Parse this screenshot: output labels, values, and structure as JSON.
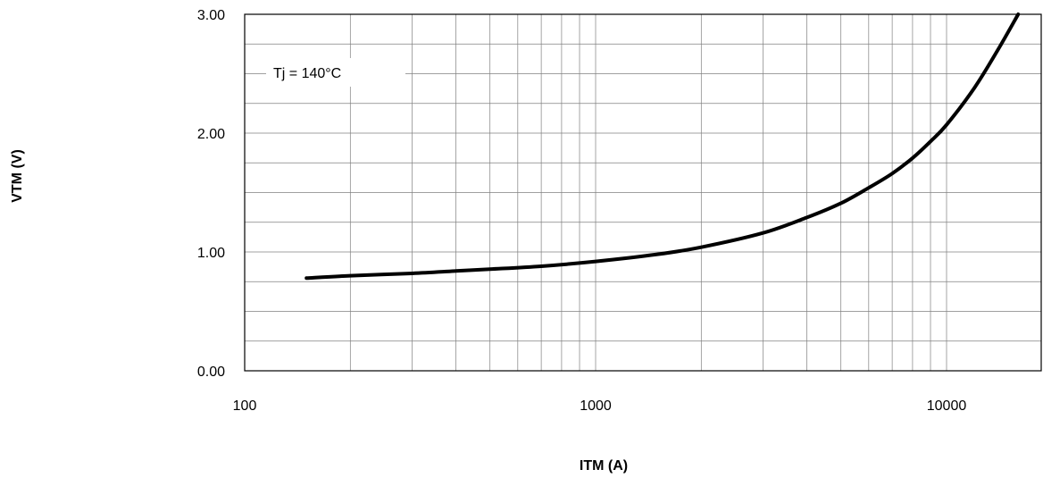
{
  "chart_data": {
    "type": "line",
    "title": "",
    "xlabel": "ITM   (A)",
    "ylabel": "VTM   (V)",
    "x_scale": "log",
    "xlim": [
      100,
      16000
    ],
    "ylim": [
      0,
      3
    ],
    "x_tick_labels": [
      "100",
      "1000",
      "10000"
    ],
    "x_tick_values": [
      100,
      1000,
      10000
    ],
    "y_tick_labels": [
      "0.00",
      "1.00",
      "2.00",
      "3.00"
    ],
    "y_tick_values": [
      0,
      1,
      2,
      3
    ],
    "y_minor_step": 0.25,
    "grid": true,
    "annotation": "Tj = 140°C",
    "line_color": "#000000",
    "grid_color": "#808080",
    "series": [
      {
        "x": [
          150,
          200,
          300,
          400,
          500,
          700,
          1000,
          1500,
          2000,
          3000,
          4000,
          5000,
          6000,
          7000,
          8000,
          9000,
          10000,
          12000,
          14000,
          16000
        ],
        "y": [
          0.78,
          0.8,
          0.82,
          0.84,
          0.855,
          0.88,
          0.92,
          0.98,
          1.04,
          1.16,
          1.29,
          1.41,
          1.54,
          1.66,
          1.79,
          1.93,
          2.07,
          2.38,
          2.7,
          3.0
        ]
      }
    ]
  }
}
